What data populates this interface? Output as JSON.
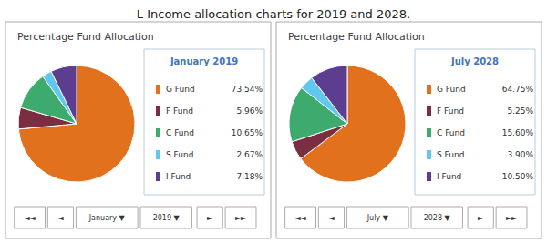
{
  "title": "L Income allocation charts for 2019 and 2028.",
  "chart_data": [
    {
      "type": "pie",
      "title": "Percentage Fund Allocation",
      "subtitle": "January 2019",
      "categories": [
        "G Fund",
        "F Fund",
        "C Fund",
        "S Fund",
        "I Fund"
      ],
      "values": [
        73.54,
        5.96,
        10.65,
        2.67,
        7.18
      ],
      "value_labels": [
        "73.54%",
        "5.96%",
        "10.65%",
        "2.67%",
        "7.18%"
      ],
      "colors": [
        "#e2711d",
        "#7b2d42",
        "#3dab6e",
        "#5ec8f0",
        "#5c3d8f"
      ],
      "legend": "right",
      "annotations": [
        "◄◄",
        "◄",
        "January ▼",
        "2019 ▼",
        "►",
        "►►"
      ]
    },
    {
      "type": "pie",
      "title": "Percentage Fund Allocation",
      "subtitle": "July 2028",
      "categories": [
        "G Fund",
        "F Fund",
        "C Fund",
        "S Fund",
        "I Fund"
      ],
      "values": [
        64.75,
        5.25,
        15.6,
        3.9,
        10.5
      ],
      "value_labels": [
        "64.75%",
        "5.25%",
        "15.60%",
        "3.90%",
        "10.50%"
      ],
      "colors": [
        "#e2711d",
        "#7b2d42",
        "#3dab6e",
        "#5ec8f0",
        "#5c3d8f"
      ],
      "legend": "right",
      "annotations": [
        "◄◄",
        "◄",
        "July ▼",
        "2028 ▼",
        "►",
        "►►"
      ]
    }
  ]
}
